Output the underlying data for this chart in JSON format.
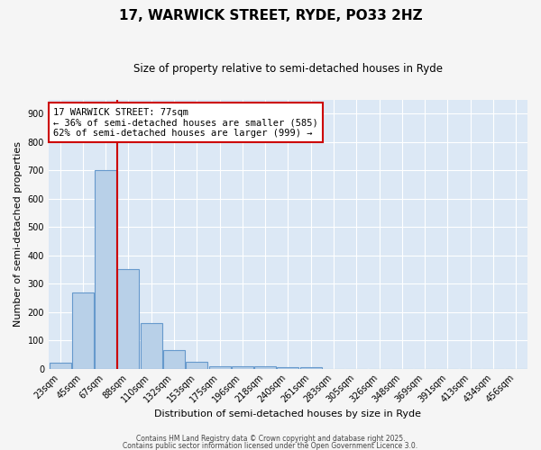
{
  "title": "17, WARWICK STREET, RYDE, PO33 2HZ",
  "subtitle": "Size of property relative to semi-detached houses in Ryde",
  "xlabel": "Distribution of semi-detached houses by size in Ryde",
  "ylabel": "Number of semi-detached properties",
  "categories": [
    "23sqm",
    "45sqm",
    "67sqm",
    "88sqm",
    "110sqm",
    "132sqm",
    "153sqm",
    "175sqm",
    "196sqm",
    "218sqm",
    "240sqm",
    "261sqm",
    "283sqm",
    "305sqm",
    "326sqm",
    "348sqm",
    "369sqm",
    "391sqm",
    "413sqm",
    "434sqm",
    "456sqm"
  ],
  "values": [
    20,
    270,
    700,
    350,
    160,
    65,
    25,
    10,
    10,
    10,
    5,
    5,
    0,
    0,
    0,
    0,
    0,
    0,
    0,
    0,
    0
  ],
  "bar_color": "#b8d0e8",
  "bar_edge_color": "#6699cc",
  "red_line_x": 2.5,
  "annotation_title": "17 WARWICK STREET: 77sqm",
  "annotation_line2": "← 36% of semi-detached houses are smaller (585)",
  "annotation_line3": "62% of semi-detached houses are larger (999) →",
  "annotation_box_color": "#cc0000",
  "ylim": [
    0,
    950
  ],
  "yticks": [
    0,
    100,
    200,
    300,
    400,
    500,
    600,
    700,
    800,
    900
  ],
  "background_color": "#dce8f5",
  "grid_color": "#ffffff",
  "fig_bg_color": "#f5f5f5",
  "footer1": "Contains HM Land Registry data © Crown copyright and database right 2025.",
  "footer2": "Contains public sector information licensed under the Open Government Licence 3.0."
}
